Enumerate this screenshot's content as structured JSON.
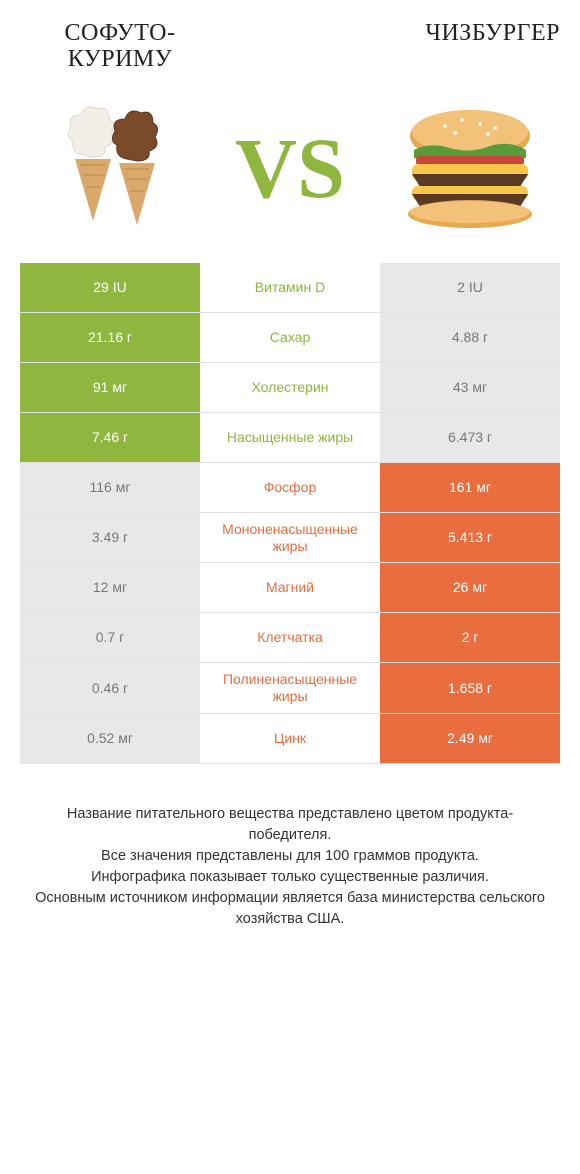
{
  "colors": {
    "green": "#8fb63f",
    "orange": "#e96d3f",
    "gray": "#e8e8e8",
    "white": "#ffffff",
    "dark_text": "#333333",
    "vs_color": "#8fb63f"
  },
  "header": {
    "left_title_line1": "СОФУТО-",
    "left_title_line2": "КУРИМУ",
    "right_title": "ЧИЗБУРГЕР",
    "vs": "VS"
  },
  "rows": [
    {
      "nutrient": "Витамин D",
      "left": "29 IU",
      "right": "2 IU",
      "winner": "left"
    },
    {
      "nutrient": "Сахар",
      "left": "21.16 г",
      "right": "4.88 г",
      "winner": "left"
    },
    {
      "nutrient": "Холестерин",
      "left": "91 мг",
      "right": "43 мг",
      "winner": "left"
    },
    {
      "nutrient": "Насыщенные жиры",
      "left": "7.46 г",
      "right": "6.473 г",
      "winner": "left"
    },
    {
      "nutrient": "Фосфор",
      "left": "116 мг",
      "right": "161 мг",
      "winner": "right"
    },
    {
      "nutrient": "Мононенасыщенные жиры",
      "left": "3.49 г",
      "right": "5.413 г",
      "winner": "right"
    },
    {
      "nutrient": "Магний",
      "left": "12 мг",
      "right": "26 мг",
      "winner": "right"
    },
    {
      "nutrient": "Клетчатка",
      "left": "0.7 г",
      "right": "2 г",
      "winner": "right"
    },
    {
      "nutrient": "Полиненасыщенные жиры",
      "left": "0.46 г",
      "right": "1.658 г",
      "winner": "right"
    },
    {
      "nutrient": "Цинк",
      "left": "0.52 мг",
      "right": "2.49 мг",
      "winner": "right"
    }
  ],
  "footer_lines": [
    "Название питательного вещества представлено цветом продукта-победителя.",
    "Все значения представлены для 100 граммов продукта.",
    "Инфографика показывает только существенные различия.",
    "Основным источником информации является база министерства сельского хозяйства США."
  ]
}
